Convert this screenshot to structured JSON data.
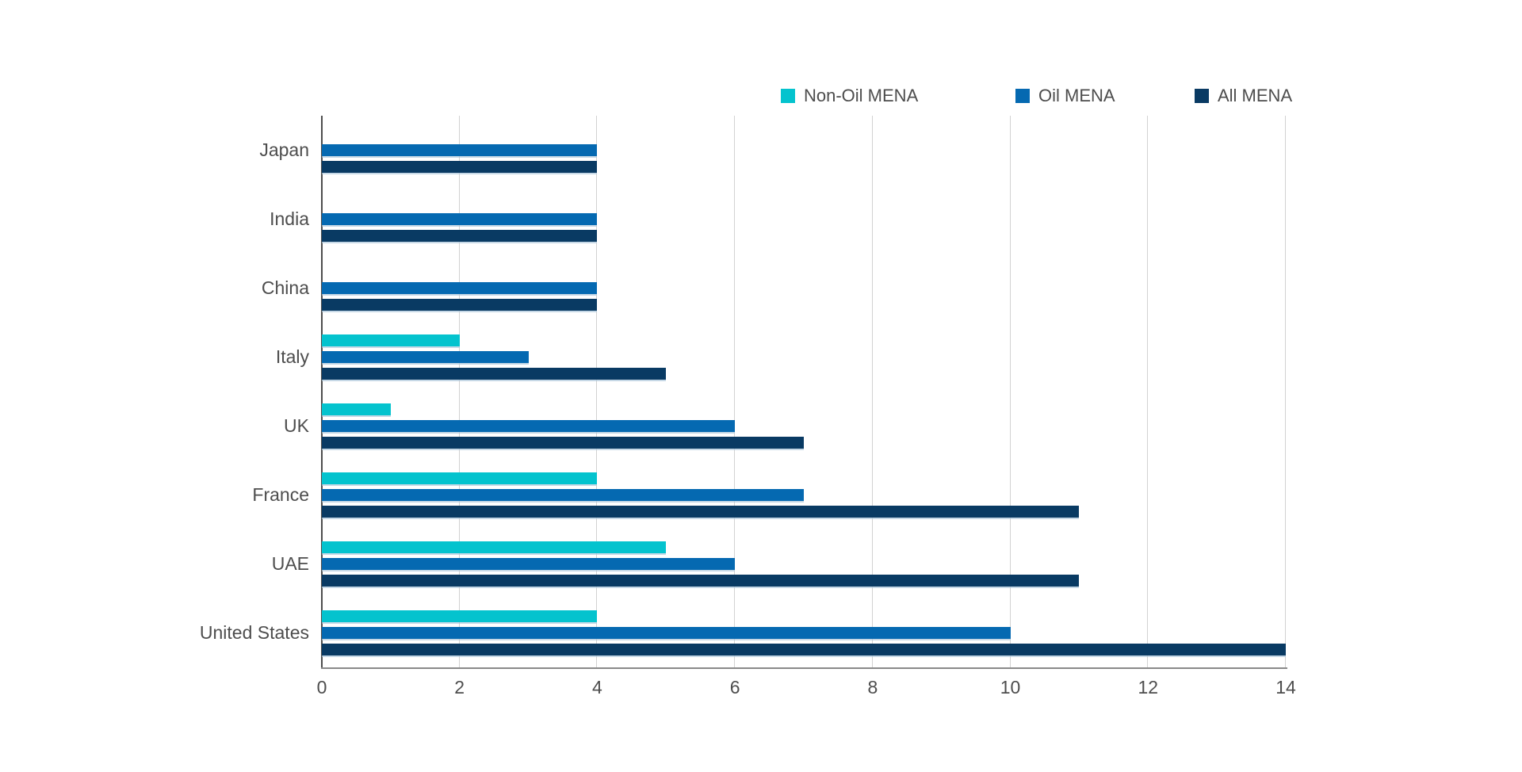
{
  "chart": {
    "background_color": "#ffffff",
    "text_color": "#4d4d4d",
    "grid_color": "#d2d2d2",
    "y_axis_color": "#4d4d4d",
    "x_axis_color": "#8a8a8a"
  },
  "chart_data": {
    "type": "bar",
    "orientation": "horizontal",
    "title": "",
    "xlabel": "",
    "ylabel": "",
    "categories": [
      "Japan",
      "India",
      "China",
      "Italy",
      "UK",
      "France",
      "UAE",
      "United States"
    ],
    "series": [
      {
        "name": "Non-Oil MENA",
        "color": "#04c3ce",
        "values": [
          0,
          0,
          0,
          2,
          1,
          4,
          5,
          4
        ]
      },
      {
        "name": "Oil MENA",
        "color": "#0569b1",
        "values": [
          4,
          4,
          4,
          3,
          6,
          7,
          6,
          10
        ]
      },
      {
        "name": "All MENA",
        "color": "#093a63",
        "values": [
          4,
          4,
          4,
          5,
          7,
          11,
          11,
          14
        ]
      }
    ],
    "xlim": [
      0,
      14
    ],
    "x_ticks": [
      "0",
      "2",
      "4",
      "6",
      "8",
      "10",
      "12",
      "14"
    ],
    "grid": true,
    "legend_position": "top-right",
    "legend_entries": [
      "Non-Oil MENA",
      "Oil MENA",
      "All MENA"
    ]
  }
}
